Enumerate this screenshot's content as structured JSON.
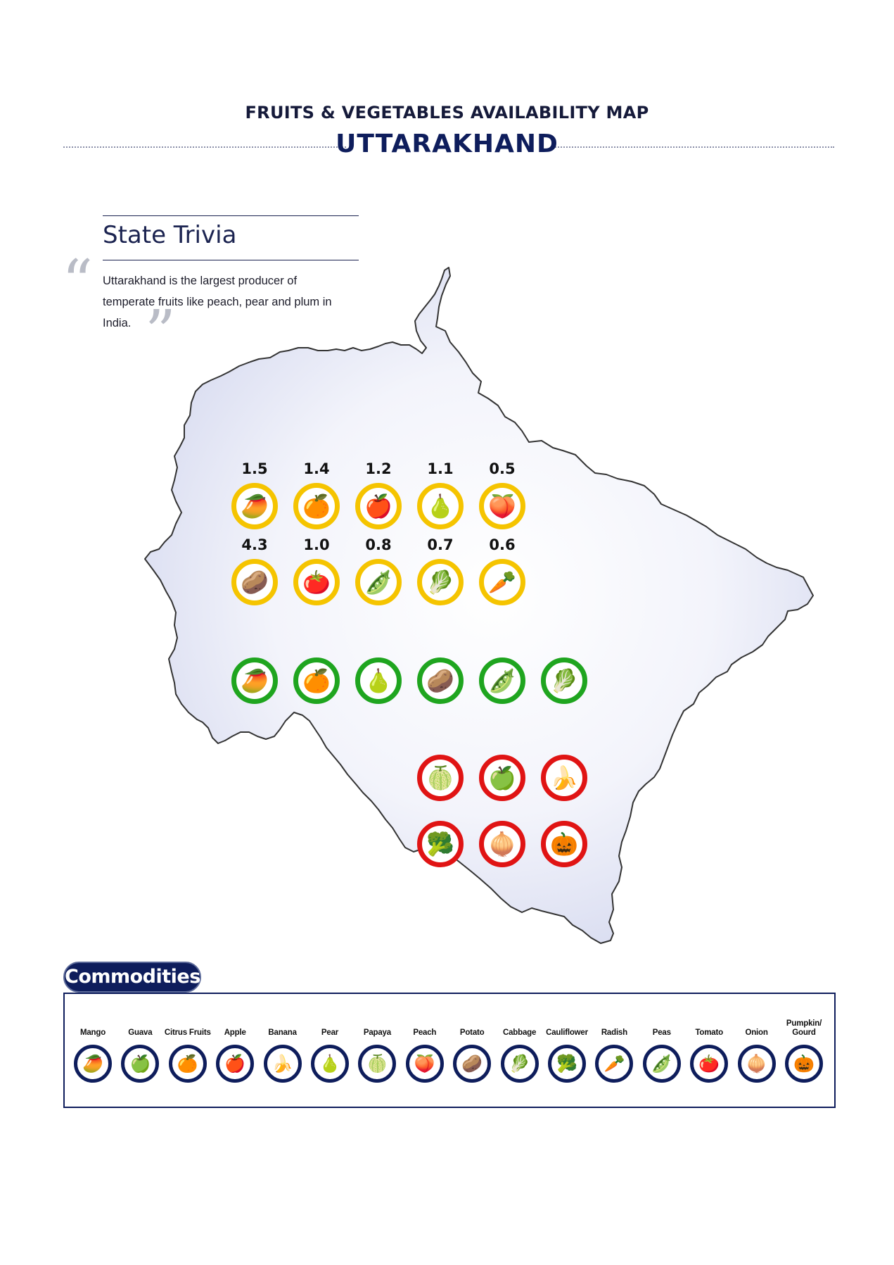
{
  "header": {
    "title_line1": "FRUITS & VEGETABLES AVAILABILITY MAP",
    "title_line2": "UTTARAKHAND"
  },
  "trivia": {
    "heading": "State Trivia",
    "text": "Uttarakhand is the largest producer of temperate fruits like peach, pear and plum in India."
  },
  "map": {
    "region": "Uttarakhand",
    "fill_color": "#e3e6f5",
    "outline_color": "#333333",
    "ring_colors": {
      "yellow": "#f5c400",
      "green": "#1fa51f",
      "red": "#e01414",
      "navy": "#0e1d5c"
    },
    "yellow_group": [
      {
        "commodity": "Mango",
        "value": "1.5",
        "icon": "mango-icon",
        "glyph": "🥭"
      },
      {
        "commodity": "Citrus Fruits",
        "value": "1.4",
        "icon": "citrus-icon",
        "glyph": "🍊"
      },
      {
        "commodity": "Apple",
        "value": "1.2",
        "icon": "apple-icon",
        "glyph": "🍎"
      },
      {
        "commodity": "Pear",
        "value": "1.1",
        "icon": "pear-icon",
        "glyph": "🍐"
      },
      {
        "commodity": "Peach",
        "value": "0.5",
        "icon": "peach-icon",
        "glyph": "🍑"
      },
      {
        "commodity": "Potato",
        "value": "4.3",
        "icon": "potato-icon",
        "glyph": "🥔"
      },
      {
        "commodity": "Tomato",
        "value": "1.0",
        "icon": "tomato-icon",
        "glyph": "🍅"
      },
      {
        "commodity": "Peas",
        "value": "0.8",
        "icon": "peas-icon",
        "glyph": "🫛"
      },
      {
        "commodity": "Cabbage",
        "value": "0.7",
        "icon": "cabbage-icon",
        "glyph": "🥬"
      },
      {
        "commodity": "Radish",
        "value": "0.6",
        "icon": "radish-icon",
        "glyph": "🥕"
      }
    ],
    "green_group": [
      {
        "commodity": "Mango",
        "icon": "mango-icon",
        "glyph": "🥭"
      },
      {
        "commodity": "Citrus Fruits",
        "icon": "citrus-icon",
        "glyph": "🍊"
      },
      {
        "commodity": "Pear",
        "icon": "pear-icon",
        "glyph": "🍐"
      },
      {
        "commodity": "Potato",
        "icon": "potato-icon",
        "glyph": "🥔"
      },
      {
        "commodity": "Peas",
        "icon": "peas-icon",
        "glyph": "🫛"
      },
      {
        "commodity": "Cabbage",
        "icon": "cabbage-icon",
        "glyph": "🥬"
      }
    ],
    "red_group": [
      {
        "commodity": "Papaya",
        "icon": "papaya-icon",
        "glyph": "🍈"
      },
      {
        "commodity": "Guava",
        "icon": "guava-icon",
        "glyph": "🍏"
      },
      {
        "commodity": "Banana",
        "icon": "banana-icon",
        "glyph": "🍌"
      },
      {
        "commodity": "Cauliflower",
        "icon": "cauliflower-icon",
        "glyph": "🥦"
      },
      {
        "commodity": "Onion",
        "icon": "onion-icon",
        "glyph": "🧅"
      },
      {
        "commodity": "Pumpkin/ Gourd",
        "icon": "pumpkin-icon",
        "glyph": "🎃"
      }
    ]
  },
  "commodities": {
    "title": "Commodities",
    "items": [
      {
        "label": "Mango",
        "icon": "mango-icon",
        "glyph": "🥭"
      },
      {
        "label": "Guava",
        "icon": "guava-icon",
        "glyph": "🍏"
      },
      {
        "label": "Citrus Fruits",
        "icon": "citrus-icon",
        "glyph": "🍊"
      },
      {
        "label": "Apple",
        "icon": "apple-icon",
        "glyph": "🍎"
      },
      {
        "label": "Banana",
        "icon": "banana-icon",
        "glyph": "🍌"
      },
      {
        "label": "Pear",
        "icon": "pear-icon",
        "glyph": "🍐"
      },
      {
        "label": "Papaya",
        "icon": "papaya-icon",
        "glyph": "🍈"
      },
      {
        "label": "Peach",
        "icon": "peach-icon",
        "glyph": "🍑"
      },
      {
        "label": "Potato",
        "icon": "potato-icon",
        "glyph": "🥔"
      },
      {
        "label": "Cabbage",
        "icon": "cabbage-icon",
        "glyph": "🥬"
      },
      {
        "label": "Cauliflower",
        "icon": "cauliflower-icon",
        "glyph": "🥦"
      },
      {
        "label": "Radish",
        "icon": "radish-icon",
        "glyph": "🥕"
      },
      {
        "label": "Peas",
        "icon": "peas-icon",
        "glyph": "🫛"
      },
      {
        "label": "Tomato",
        "icon": "tomato-icon",
        "glyph": "🍅"
      },
      {
        "label": "Onion",
        "icon": "onion-icon",
        "glyph": "🧅"
      },
      {
        "label": "Pumpkin/ Gourd",
        "icon": "pumpkin-icon",
        "glyph": "🎃"
      }
    ]
  }
}
